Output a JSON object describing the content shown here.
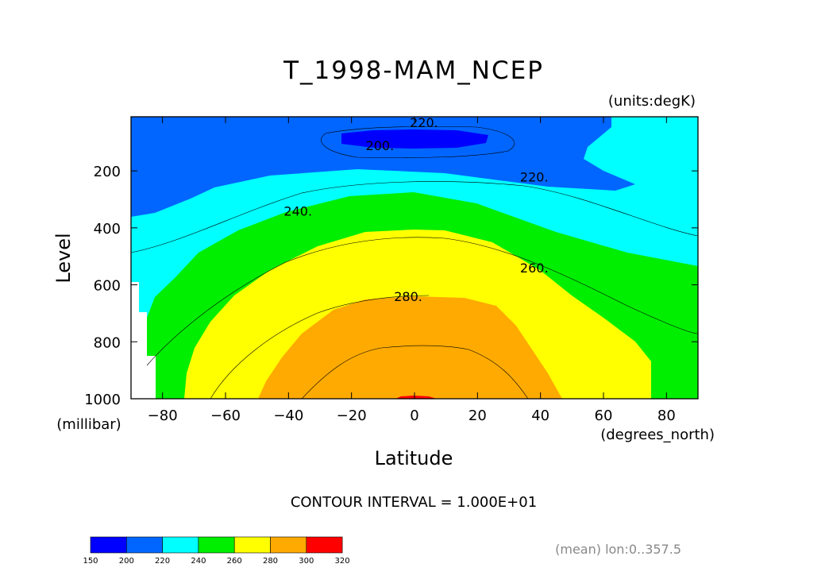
{
  "chart_data": {
    "type": "contour",
    "title": "T_1998-MAM_NCEP",
    "units_label": "(units:degK)",
    "xlabel": "Latitude",
    "x_units_label": "(degrees_north)",
    "ylabel": "Level",
    "y_units_label": "(millibar)",
    "xlim": [
      -90,
      90
    ],
    "ylim": [
      1000,
      10
    ],
    "x_ticks": [
      "-80",
      "-60",
      "-40",
      "-20",
      "0",
      "20",
      "40",
      "60",
      "80"
    ],
    "x_tick_values": [
      -80,
      -60,
      -40,
      -20,
      0,
      20,
      40,
      60,
      80
    ],
    "y_ticks": [
      "200",
      "400",
      "600",
      "800",
      "1000"
    ],
    "y_tick_values": [
      200,
      400,
      600,
      800,
      1000
    ],
    "contour_labels": [
      {
        "text": "220.",
        "lat": 3,
        "lev": 30
      },
      {
        "text": "200.",
        "lat": -11,
        "lev": 110
      },
      {
        "text": "220.",
        "lat": 38,
        "lev": 220
      },
      {
        "text": "240.",
        "lat": -37,
        "lev": 340
      },
      {
        "text": "260.",
        "lat": 38,
        "lev": 540
      },
      {
        "text": "280.",
        "lat": -2,
        "lev": 640
      }
    ],
    "contour_interval_text": "CONTOUR INTERVAL = 1.000E+01",
    "averaging_note": "(mean) lon:0..357.5",
    "colorbar": {
      "levels": [
        "150",
        "200",
        "220",
        "240",
        "260",
        "280",
        "300",
        "320"
      ],
      "colors": [
        "#0000ff",
        "#0066ff",
        "#00ffff",
        "#00ee00",
        "#ffff00",
        "#ffaa00",
        "#ff0000"
      ]
    },
    "band_colors": {
      "below_200": "#0000ff",
      "200_220": "#0066ff",
      "220_240": "#00ffff",
      "240_260": "#00ee00",
      "260_280": "#ffff00",
      "280_300": "#ffaa00",
      "above_300": "#ff0000",
      "missing": "#ffffff"
    }
  }
}
